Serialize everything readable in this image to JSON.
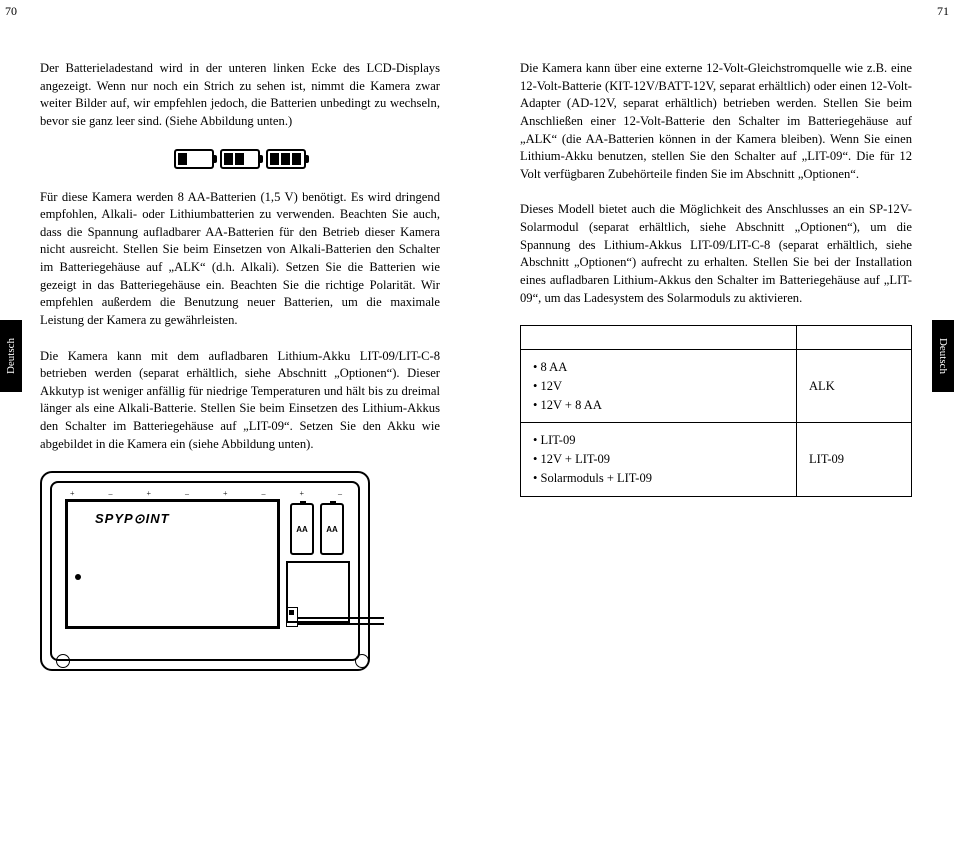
{
  "page_left_num": "70",
  "page_right_num": "71",
  "side_tab": "Deutsch",
  "left": {
    "para1": "Der Batterieladestand wird in der unteren linken Ecke des LCD-Displays angezeigt. Wenn nur noch ein Strich zu sehen ist, nimmt die Kamera zwar weiter Bilder auf, wir empfehlen jedoch, die Batterien unbedingt zu wechseln, bevor sie ganz leer sind. (Siehe Abbildung unten.)",
    "para2": "Für diese Kamera werden 8 AA-Batterien (1,5 V) benötigt. Es wird dringend empfohlen, Alkali- oder Lithiumbatterien zu verwenden. Beachten Sie auch, dass die Spannung aufladbarer AA-Batterien für den Betrieb dieser Kamera nicht ausreicht. Stellen Sie beim Einsetzen von Alkali-Batterien den Schalter im Batteriegehäuse auf „ALK“ (d.h. Alkali). Setzen Sie die Batterien wie gezeigt in das Batteriegehäuse ein. Beachten Sie die richtige Polarität. Wir empfehlen außerdem die Benutzung neuer Batterien, um die maximale Leistung der Kamera zu gewährleisten.",
    "para3": "Die Kamera kann mit dem aufladbaren Lithium-Akku LIT-09/LIT-C-8 betrieben werden (separat erhältlich, siehe Abschnitt „Optionen“). Dieser Akkutyp ist weniger anfällig für niedrige Temperaturen und hält bis zu dreimal länger als eine Alkali-Batterie. Stellen Sie beim Einsetzen des Lithium-Akkus den Schalter im Batteriegehäuse auf „LIT-09“. Setzen Sie den Akku wie abgebildet in die Kamera ein (siehe Abbildung unten).",
    "battery_label": "AA",
    "logo": "SPYP⊙INT"
  },
  "right": {
    "para1": "Die Kamera kann über eine externe 12-Volt-Gleichstromquelle wie z.B. eine 12-Volt-Batterie (KIT-12V/BATT-12V, separat erhältlich) oder einen 12-Volt-Adapter (AD-12V, separat erhältlich) betrieben werden. Stellen Sie beim Anschließen einer 12-Volt-Batterie den Schalter im Batteriegehäuse auf „ALK“ (die AA-Batterien können in der Kamera bleiben). Wenn Sie einen Lithium-Akku benutzen, stellen Sie den Schalter auf „LIT-09“. Die für 12 Volt verfügbaren Zubehörteile finden Sie im Abschnitt „Optionen“.",
    "para2": "Dieses Modell bietet auch die Möglichkeit des Anschlusses an ein SP-12V-Solarmodul (separat erhältlich, siehe Abschnitt „Optionen“), um die Spannung des Lithium-Akkus LIT-09/LIT-C-8 (separat erhältlich, siehe Abschnitt „Optionen“) aufrecht zu erhalten. Stellen Sie bei der Installation eines aufladbaren Lithium-Akkus den Schalter im Batteriegehäuse auf „LIT-09“, um das Ladesystem des Solarmoduls zu aktivieren.",
    "table": {
      "rows": [
        {
          "options": [
            "• 8 AA",
            "• 12V",
            "• 12V + 8 AA"
          ],
          "setting": "ALK"
        },
        {
          "options": [
            "• LIT-09",
            "• 12V + LIT-09",
            "• Solarmoduls + LIT-09"
          ],
          "setting": "LIT-09"
        }
      ]
    }
  },
  "colors": {
    "text": "#000000",
    "background": "#ffffff",
    "tab_bg": "#000000",
    "tab_fg": "#ffffff"
  }
}
